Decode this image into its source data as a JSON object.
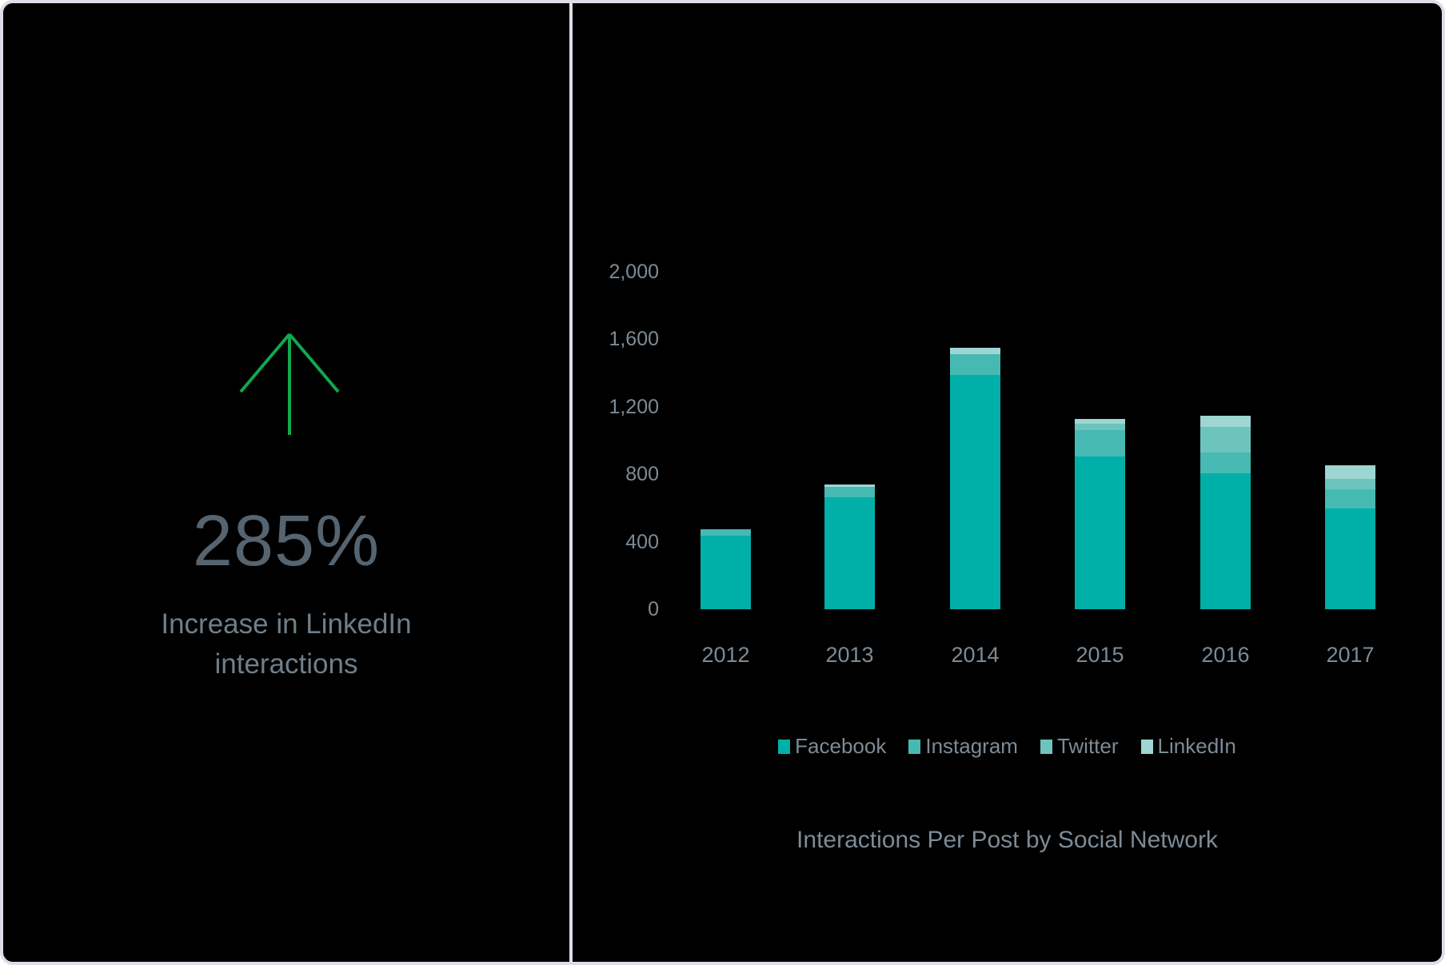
{
  "kpi": {
    "icon": "arrow-up-icon",
    "value": "285%",
    "caption_line1": "Increase in LinkedIn",
    "caption_line2": "interactions",
    "arrow_color": "#10a84e"
  },
  "chart_data": {
    "type": "bar",
    "stacked": true,
    "title": "Interactions Per Post by Social Network",
    "xlabel": "",
    "ylabel": "",
    "ylim": [
      0,
      2000
    ],
    "y_ticks": [
      "0",
      "400",
      "800",
      "1,200",
      "1,600",
      "2,000"
    ],
    "categories": [
      "2012",
      "2013",
      "2014",
      "2015",
      "2016",
      "2017"
    ],
    "series": [
      {
        "name": "Facebook",
        "color": "#00afa8",
        "values": [
          436,
          664,
          1389,
          905,
          806,
          597
        ]
      },
      {
        "name": "Instagram",
        "color": "#46b9b2",
        "values": [
          38,
          60,
          123,
          157,
          123,
          114
        ]
      },
      {
        "name": "Twitter",
        "color": "#6dc4bd",
        "values": [
          0,
          0,
          0,
          38,
          152,
          62
        ]
      },
      {
        "name": "LinkedIn",
        "color": "#9dd6d2",
        "values": [
          0,
          15,
          38,
          28,
          66,
          80
        ]
      }
    ],
    "grid": false,
    "legend_position": "bottom"
  }
}
